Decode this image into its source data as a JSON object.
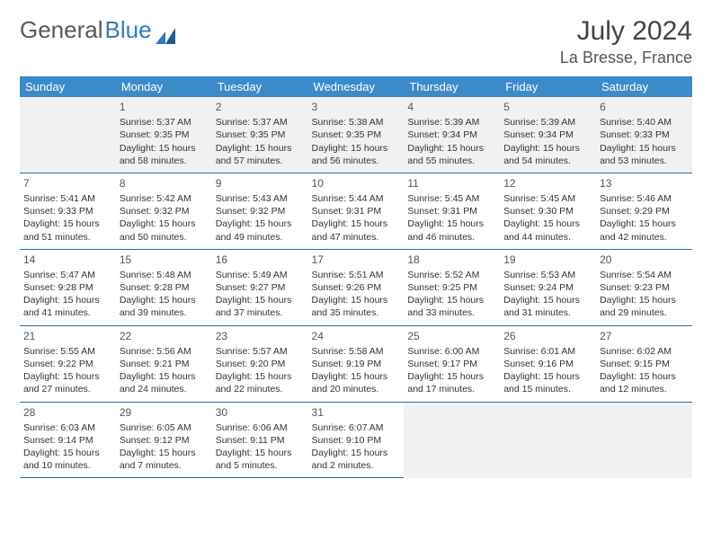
{
  "logo": {
    "part1": "General",
    "part2": "Blue"
  },
  "title": "July 2024",
  "location": "La Bresse, France",
  "weekdays": [
    "Sunday",
    "Monday",
    "Tuesday",
    "Wednesday",
    "Thursday",
    "Friday",
    "Saturday"
  ],
  "colors": {
    "header_bg": "#3b8bc9",
    "header_text": "#ffffff",
    "row_divider": "#2f6da8",
    "text": "#333333",
    "first_row_bg": "#f1f1f1",
    "logo_gray": "#5a5a5a",
    "logo_blue": "#2f7bbf"
  },
  "weeks": [
    [
      null,
      {
        "n": "1",
        "sr": "Sunrise: 5:37 AM",
        "ss": "Sunset: 9:35 PM",
        "d1": "Daylight: 15 hours",
        "d2": "and 58 minutes."
      },
      {
        "n": "2",
        "sr": "Sunrise: 5:37 AM",
        "ss": "Sunset: 9:35 PM",
        "d1": "Daylight: 15 hours",
        "d2": "and 57 minutes."
      },
      {
        "n": "3",
        "sr": "Sunrise: 5:38 AM",
        "ss": "Sunset: 9:35 PM",
        "d1": "Daylight: 15 hours",
        "d2": "and 56 minutes."
      },
      {
        "n": "4",
        "sr": "Sunrise: 5:39 AM",
        "ss": "Sunset: 9:34 PM",
        "d1": "Daylight: 15 hours",
        "d2": "and 55 minutes."
      },
      {
        "n": "5",
        "sr": "Sunrise: 5:39 AM",
        "ss": "Sunset: 9:34 PM",
        "d1": "Daylight: 15 hours",
        "d2": "and 54 minutes."
      },
      {
        "n": "6",
        "sr": "Sunrise: 5:40 AM",
        "ss": "Sunset: 9:33 PM",
        "d1": "Daylight: 15 hours",
        "d2": "and 53 minutes."
      }
    ],
    [
      {
        "n": "7",
        "sr": "Sunrise: 5:41 AM",
        "ss": "Sunset: 9:33 PM",
        "d1": "Daylight: 15 hours",
        "d2": "and 51 minutes."
      },
      {
        "n": "8",
        "sr": "Sunrise: 5:42 AM",
        "ss": "Sunset: 9:32 PM",
        "d1": "Daylight: 15 hours",
        "d2": "and 50 minutes."
      },
      {
        "n": "9",
        "sr": "Sunrise: 5:43 AM",
        "ss": "Sunset: 9:32 PM",
        "d1": "Daylight: 15 hours",
        "d2": "and 49 minutes."
      },
      {
        "n": "10",
        "sr": "Sunrise: 5:44 AM",
        "ss": "Sunset: 9:31 PM",
        "d1": "Daylight: 15 hours",
        "d2": "and 47 minutes."
      },
      {
        "n": "11",
        "sr": "Sunrise: 5:45 AM",
        "ss": "Sunset: 9:31 PM",
        "d1": "Daylight: 15 hours",
        "d2": "and 46 minutes."
      },
      {
        "n": "12",
        "sr": "Sunrise: 5:45 AM",
        "ss": "Sunset: 9:30 PM",
        "d1": "Daylight: 15 hours",
        "d2": "and 44 minutes."
      },
      {
        "n": "13",
        "sr": "Sunrise: 5:46 AM",
        "ss": "Sunset: 9:29 PM",
        "d1": "Daylight: 15 hours",
        "d2": "and 42 minutes."
      }
    ],
    [
      {
        "n": "14",
        "sr": "Sunrise: 5:47 AM",
        "ss": "Sunset: 9:28 PM",
        "d1": "Daylight: 15 hours",
        "d2": "and 41 minutes."
      },
      {
        "n": "15",
        "sr": "Sunrise: 5:48 AM",
        "ss": "Sunset: 9:28 PM",
        "d1": "Daylight: 15 hours",
        "d2": "and 39 minutes."
      },
      {
        "n": "16",
        "sr": "Sunrise: 5:49 AM",
        "ss": "Sunset: 9:27 PM",
        "d1": "Daylight: 15 hours",
        "d2": "and 37 minutes."
      },
      {
        "n": "17",
        "sr": "Sunrise: 5:51 AM",
        "ss": "Sunset: 9:26 PM",
        "d1": "Daylight: 15 hours",
        "d2": "and 35 minutes."
      },
      {
        "n": "18",
        "sr": "Sunrise: 5:52 AM",
        "ss": "Sunset: 9:25 PM",
        "d1": "Daylight: 15 hours",
        "d2": "and 33 minutes."
      },
      {
        "n": "19",
        "sr": "Sunrise: 5:53 AM",
        "ss": "Sunset: 9:24 PM",
        "d1": "Daylight: 15 hours",
        "d2": "and 31 minutes."
      },
      {
        "n": "20",
        "sr": "Sunrise: 5:54 AM",
        "ss": "Sunset: 9:23 PM",
        "d1": "Daylight: 15 hours",
        "d2": "and 29 minutes."
      }
    ],
    [
      {
        "n": "21",
        "sr": "Sunrise: 5:55 AM",
        "ss": "Sunset: 9:22 PM",
        "d1": "Daylight: 15 hours",
        "d2": "and 27 minutes."
      },
      {
        "n": "22",
        "sr": "Sunrise: 5:56 AM",
        "ss": "Sunset: 9:21 PM",
        "d1": "Daylight: 15 hours",
        "d2": "and 24 minutes."
      },
      {
        "n": "23",
        "sr": "Sunrise: 5:57 AM",
        "ss": "Sunset: 9:20 PM",
        "d1": "Daylight: 15 hours",
        "d2": "and 22 minutes."
      },
      {
        "n": "24",
        "sr": "Sunrise: 5:58 AM",
        "ss": "Sunset: 9:19 PM",
        "d1": "Daylight: 15 hours",
        "d2": "and 20 minutes."
      },
      {
        "n": "25",
        "sr": "Sunrise: 6:00 AM",
        "ss": "Sunset: 9:17 PM",
        "d1": "Daylight: 15 hours",
        "d2": "and 17 minutes."
      },
      {
        "n": "26",
        "sr": "Sunrise: 6:01 AM",
        "ss": "Sunset: 9:16 PM",
        "d1": "Daylight: 15 hours",
        "d2": "and 15 minutes."
      },
      {
        "n": "27",
        "sr": "Sunrise: 6:02 AM",
        "ss": "Sunset: 9:15 PM",
        "d1": "Daylight: 15 hours",
        "d2": "and 12 minutes."
      }
    ],
    [
      {
        "n": "28",
        "sr": "Sunrise: 6:03 AM",
        "ss": "Sunset: 9:14 PM",
        "d1": "Daylight: 15 hours",
        "d2": "and 10 minutes."
      },
      {
        "n": "29",
        "sr": "Sunrise: 6:05 AM",
        "ss": "Sunset: 9:12 PM",
        "d1": "Daylight: 15 hours",
        "d2": "and 7 minutes."
      },
      {
        "n": "30",
        "sr": "Sunrise: 6:06 AM",
        "ss": "Sunset: 9:11 PM",
        "d1": "Daylight: 15 hours",
        "d2": "and 5 minutes."
      },
      {
        "n": "31",
        "sr": "Sunrise: 6:07 AM",
        "ss": "Sunset: 9:10 PM",
        "d1": "Daylight: 15 hours",
        "d2": "and 2 minutes."
      },
      null,
      null,
      null
    ]
  ]
}
